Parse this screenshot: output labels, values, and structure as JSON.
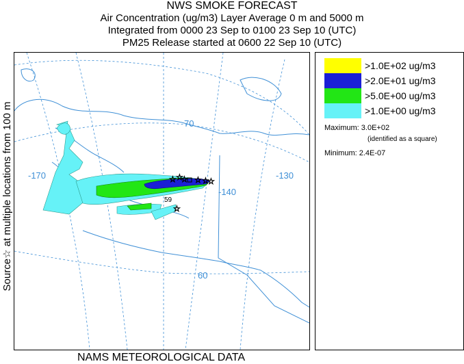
{
  "header": {
    "title": "NWS SMOKE FORECAST",
    "line1": "Air Concentration (ug/m3) Layer Average    0 m and  5000 m",
    "line2": "Integrated from 0000 23 Sep to 0100 23 Sep 10 (UTC)",
    "line3": "PM25 Release started at 0600 22 Sep 10 (UTC)"
  },
  "side_label": "Source☆   at multiple locations   from   100 m",
  "map": {
    "labels": {
      "lat70": "70",
      "lat60": "60",
      "lon170": "-170",
      "lon140": "-140",
      "lon130": "-130",
      "square_marker": "59"
    },
    "colors": {
      "land_outline": "#3e8fd6",
      "grid": "#3e8fd6",
      "cyan": "#66f2f7",
      "green": "#22e615",
      "blue": "#1b1fd6",
      "yellow": "#ffff00"
    }
  },
  "legend": {
    "items": [
      {
        "label": ">1.0E+02 ug/m3",
        "color": "#ffff00"
      },
      {
        "label": ">2.0E+01 ug/m3",
        "color": "#1b1fd6"
      },
      {
        "label": ">5.0E+00 ug/m3",
        "color": "#22e615"
      },
      {
        "label": ">1.0E+00 ug/m3",
        "color": "#66f2f7"
      }
    ],
    "maximum": "Maximum: 3.0E+02",
    "max_note": "(identified as a square)",
    "minimum": "Minimum: 2.4E-07"
  },
  "footer": "NAMS METEOROLOGICAL DATA"
}
